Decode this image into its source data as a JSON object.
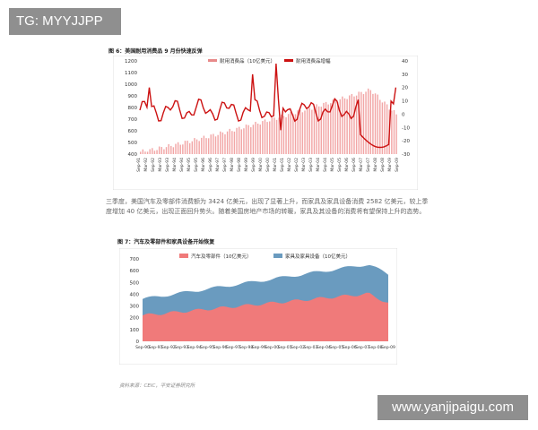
{
  "watermarks": {
    "top_left": "TG: MYYJJPP",
    "bottom_right": "www.yanjipaigu.com"
  },
  "figure1": {
    "caption": "图 6：美国耐用消费品 9 月份快速反弹",
    "legend": [
      "耐用消费品（10亿美元）",
      "耐用消费品增幅"
    ],
    "colors": {
      "bars": "#f2a6a6",
      "line": "#cc1111"
    },
    "left_ticks": [
      "1200",
      "1100",
      "1000",
      "900",
      "800",
      "700",
      "600",
      "500",
      "400"
    ],
    "right_ticks": [
      "40",
      "30",
      "20",
      "10",
      "0",
      "-10",
      "-20",
      "-30"
    ],
    "x_labels": [
      "Sep-91",
      "Mar-92",
      "Sep-92",
      "Mar-93",
      "Sep-93",
      "Mar-94",
      "Sep-94",
      "Mar-95",
      "Sep-95",
      "Mar-96",
      "Sep-96",
      "Mar-97",
      "Sep-97",
      "Mar-98",
      "Sep-98",
      "Mar-99",
      "Sep-99",
      "Mar-00",
      "Sep-00",
      "Mar-01",
      "Sep-01",
      "Mar-02",
      "Sep-02",
      "Mar-03",
      "Sep-03",
      "Mar-04",
      "Sep-04",
      "Mar-05",
      "Sep-05",
      "Mar-06",
      "Sep-06",
      "Mar-07",
      "Sep-07",
      "Mar-08",
      "Sep-08",
      "Mar-09",
      "Sep-09"
    ]
  },
  "paragraph": "三季度，美国汽车及零部件消费额为 3424 亿美元，出现了显著上升，而家具及家具设备消费 2582 亿美元，较上季度增加 40 亿美元，出现正面回升势头。随着美国房地产市场的转暖，家具及其设备的消费将有望保持上升的态势。",
  "figure2": {
    "caption": "图 7：汽车及零部件和家具设备开始恢复",
    "legend": [
      "汽车及零部件（10亿美元）",
      "家具及家具设备（10亿美元）"
    ],
    "colors": {
      "auto": "#f07a7a",
      "furniture": "#6a9bbf"
    },
    "y_ticks": [
      "700",
      "600",
      "500",
      "400",
      "300",
      "200",
      "100",
      "0"
    ],
    "x_labels": [
      "Sep-90",
      "Sep-91",
      "Sep-92",
      "Sep-93",
      "Sep-94",
      "Sep-95",
      "Sep-96",
      "Sep-97",
      "Sep-98",
      "Sep-99",
      "Sep-00",
      "Sep-01",
      "Sep-02",
      "Sep-03",
      "Sep-04",
      "Sep-05",
      "Sep-06",
      "Sep-07",
      "Sep-08",
      "Sep-09"
    ]
  },
  "source": "资料来源：CEIC，平安证券研究所"
}
